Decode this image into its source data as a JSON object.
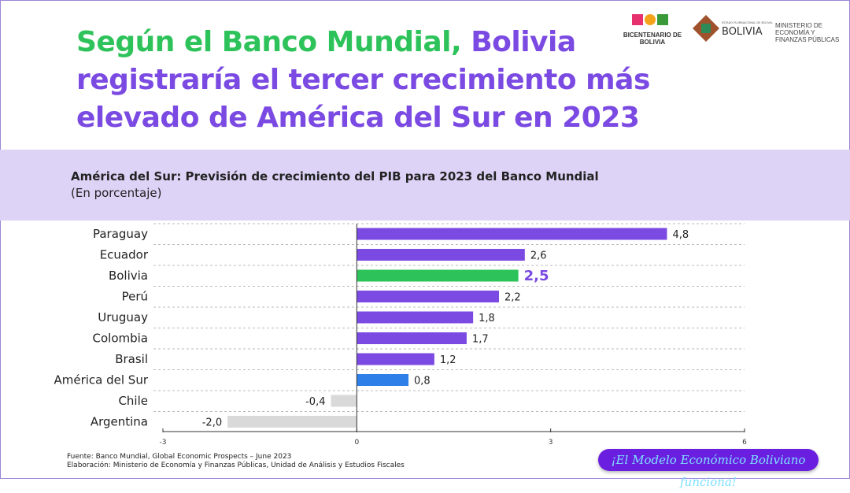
{
  "header": {
    "title_green": "Según el Banco Mundial,",
    "title_purple": " Bolivia registraría el tercer crecimiento más elevado de América del Sur en 2023"
  },
  "logos": {
    "bicentenario": "BICENTENARIO DE BOLIVIA",
    "estado": "ESTADO PLURINACIONAL DE BOLIVIA",
    "ministerio": "MINISTERIO DE ECONOMÍA Y FINANZAS PÚBLICAS"
  },
  "footer": {
    "source": "Fuente: Banco Mundial, Global Economic Prospects – June 2023",
    "elaboration": "Elaboración: Ministerio de Economía y Finanzas Públicas, Unidad de Análisis y Estudios Fiscales",
    "slogan": "¡El Modelo Económico Boliviano funciona!"
  },
  "chart_data": {
    "type": "bar",
    "orientation": "horizontal",
    "title": "América del Sur: Previsión de crecimiento del PIB para 2023 del Banco Mundial",
    "subtitle": "(En porcentaje)",
    "categories": [
      "Paraguay",
      "Ecuador",
      "Bolivia",
      "Perú",
      "Uruguay",
      "Colombia",
      "Brasil",
      "América del Sur",
      "Chile",
      "Argentina"
    ],
    "values": [
      4.8,
      2.6,
      2.5,
      2.2,
      1.8,
      1.7,
      1.2,
      0.8,
      -0.4,
      -2.0
    ],
    "labels": [
      "4,8",
      "2,6",
      "2,5",
      "2,2",
      "1,8",
      "1,7",
      "1,2",
      "0,8",
      "-0,4",
      "-2,0"
    ],
    "colors": [
      "#7b4ae2",
      "#7b4ae2",
      "#2ec35a",
      "#7b4ae2",
      "#7b4ae2",
      "#7b4ae2",
      "#7b4ae2",
      "#2f7fe8",
      "#d9d9d9",
      "#d9d9d9"
    ],
    "highlight": "Bolivia",
    "xlim": [
      -3,
      6
    ],
    "xticks": [
      -3,
      0,
      3,
      6
    ],
    "xtick_labels": [
      "-3",
      "0",
      "3",
      "6"
    ],
    "grid": "horizontal dashed"
  }
}
